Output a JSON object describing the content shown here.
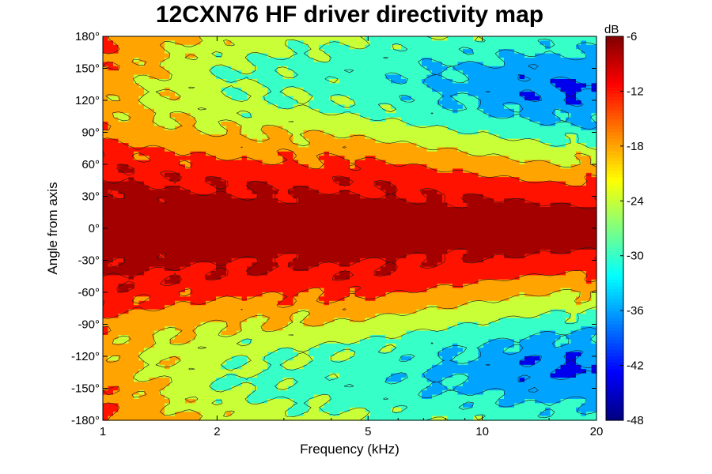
{
  "chart_data": {
    "type": "heatmap",
    "title": "12CXN76 HF driver directivity map",
    "xlabel": "Frequency (kHz)",
    "ylabel": "Angle from axis",
    "x_scale": "log",
    "xlim": [
      1,
      20
    ],
    "ylim": [
      -180,
      180
    ],
    "x_ticks": [
      1,
      2,
      5,
      10,
      20
    ],
    "x_tick_labels": [
      "1",
      "2",
      "5",
      "10",
      "20"
    ],
    "y_ticks": [
      180,
      150,
      120,
      90,
      60,
      30,
      0,
      -30,
      -60,
      -90,
      -120,
      -150,
      -180
    ],
    "y_tick_labels": [
      "180°",
      "150°",
      "120°",
      "90°",
      "60°",
      "30°",
      "0°",
      "-30°",
      "-60°",
      "-90°",
      "-120°",
      "-150°",
      "-180°"
    ],
    "colorbar": {
      "label": "dB",
      "range": [
        -48,
        -6
      ],
      "ticks": [
        -6,
        -12,
        -18,
        -24,
        -30,
        -36,
        -42,
        -48
      ],
      "tick_labels": [
        "-6",
        "-12",
        "-18",
        "-24",
        "-30",
        "-36",
        "-42",
        "-48"
      ],
      "colormap": "jet"
    },
    "contour_levels_db": [
      -9,
      -15,
      -21,
      -27,
      -33,
      -39
    ],
    "angle_dB_profile_at_1kHz": [
      {
        "angle": 0,
        "dB": -6
      },
      {
        "angle": 50,
        "dB": -9
      },
      {
        "angle": 75,
        "dB": -14
      },
      {
        "angle": 110,
        "dB": -19
      },
      {
        "angle": 180,
        "dB": -14
      }
    ],
    "angle_dB_profile_at_2kHz": [
      {
        "angle": 0,
        "dB": -6
      },
      {
        "angle": 45,
        "dB": -10
      },
      {
        "angle": 65,
        "dB": -15
      },
      {
        "angle": 110,
        "dB": -25
      },
      {
        "angle": 150,
        "dB": -27
      },
      {
        "angle": 180,
        "dB": -22
      }
    ],
    "angle_dB_profile_at_5kHz": [
      {
        "angle": 0,
        "dB": -6
      },
      {
        "angle": 45,
        "dB": -10
      },
      {
        "angle": 70,
        "dB": -17
      },
      {
        "angle": 110,
        "dB": -28
      },
      {
        "angle": 150,
        "dB": -31
      },
      {
        "angle": 180,
        "dB": -27
      }
    ],
    "angle_dB_profile_at_15kHz": [
      {
        "angle": 0,
        "dB": -6
      },
      {
        "angle": 30,
        "dB": -10
      },
      {
        "angle": 55,
        "dB": -19
      },
      {
        "angle": 100,
        "dB": -33
      },
      {
        "angle": 130,
        "dB": -40
      },
      {
        "angle": 180,
        "dB": -30
      }
    ]
  }
}
